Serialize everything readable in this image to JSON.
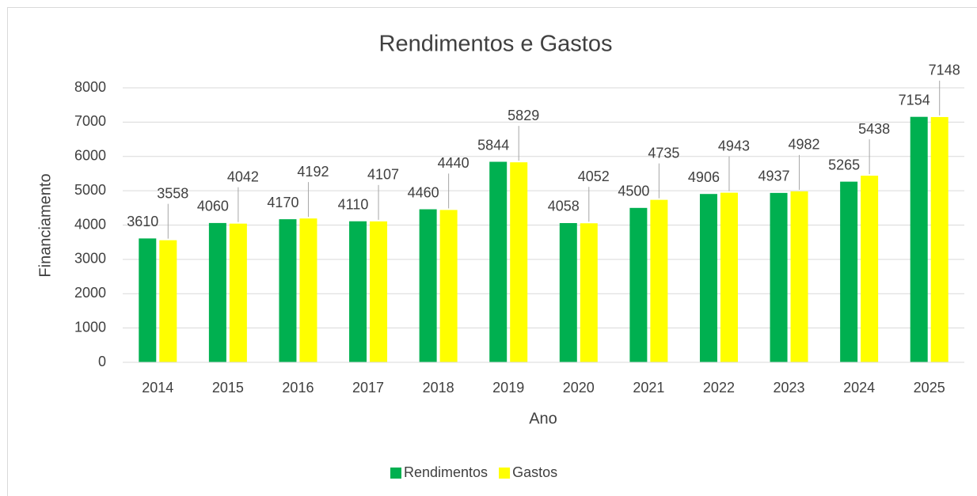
{
  "chart_data": {
    "type": "bar",
    "title": "Rendimentos e Gastos",
    "x_label": "Ano",
    "y_label": "Financiamento",
    "categories": [
      "2014",
      "2015",
      "2016",
      "2017",
      "2018",
      "2019",
      "2020",
      "2021",
      "2022",
      "2023",
      "2024",
      "2025"
    ],
    "series": [
      {
        "name": "Rendimentos",
        "color": "#00b050",
        "values": [
          3610,
          4060,
          4170,
          4110,
          4460,
          5844,
          4058,
          4500,
          4906,
          4937,
          5265,
          7154
        ]
      },
      {
        "name": "Gastos",
        "color": "#ffff00",
        "values": [
          3558,
          4042,
          4192,
          4107,
          4440,
          5829,
          4052,
          4735,
          4943,
          4982,
          5438,
          7148
        ]
      }
    ],
    "ylim": [
      0,
      8000
    ],
    "yticks": [
      0,
      1000,
      2000,
      3000,
      4000,
      5000,
      6000,
      7000,
      8000
    ],
    "grid": true,
    "legend": "bottom"
  }
}
